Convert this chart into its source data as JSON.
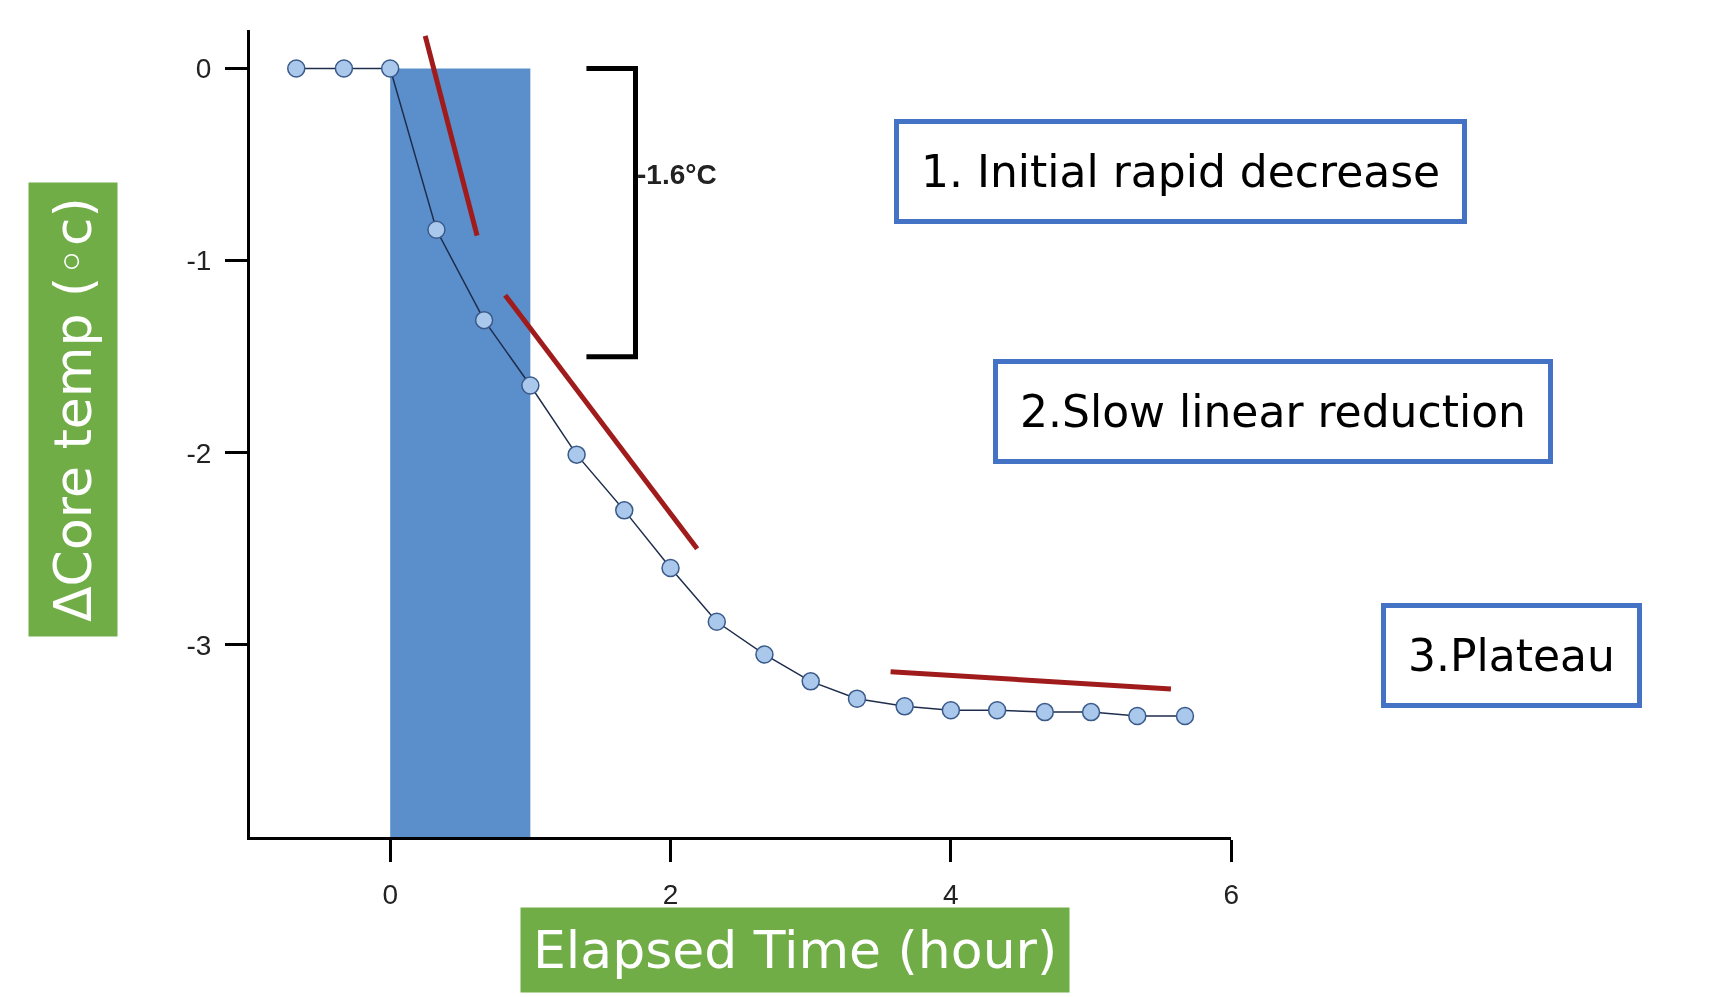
{
  "chart_data": {
    "type": "line",
    "xlabel": "Elapsed Time (hour)",
    "ylabel": "ΔCore temp (◦c)",
    "xlim": [
      -1,
      6
    ],
    "ylim": [
      -4,
      0.2
    ],
    "xticks": [
      0,
      2,
      4,
      6
    ],
    "yticks": [
      -3,
      -2,
      -1,
      0
    ],
    "series": [
      {
        "color": "#a9c8ec",
        "marker": "circle",
        "x": [
          -0.67,
          -0.33,
          0,
          0.33,
          0.67,
          1,
          1.33,
          1.67,
          2,
          2.33,
          2.67,
          3,
          3.33,
          3.67,
          4,
          4.33,
          4.67,
          5,
          5.33,
          5.67
        ],
        "values": [
          0,
          0,
          0,
          -0.84,
          -1.31,
          -1.65,
          -2.01,
          -2.3,
          -2.6,
          -2.88,
          -3.05,
          -3.19,
          -3.28,
          -3.32,
          -3.34,
          -3.34,
          -3.35,
          -3.35,
          -3.37,
          -3.37
        ]
      },
      {
        "color": "#a01c1c",
        "marker": "none",
        "x": [
          0.25,
          0.62
        ],
        "values": [
          0.17,
          -0.87
        ]
      },
      {
        "color": "#a01c1c",
        "marker": "none",
        "x": [
          0.82,
          2.19
        ],
        "values": [
          -1.18,
          -2.5
        ]
      },
      {
        "color": "#a01c1c",
        "marker": "none",
        "x": [
          3.57,
          5.57
        ],
        "values": [
          -3.14,
          -3.23
        ]
      },
      {
        "color": "#000000",
        "marker": "none",
        "x": [
          1.4,
          1.75,
          1.75,
          1.4
        ],
        "values": [
          0,
          0,
          -1.5,
          -1.5
        ]
      }
    ],
    "bands": [
      {
        "axis": "x",
        "from": 0,
        "to": 1,
        "color": "#5b8fcc"
      }
    ],
    "annotations": [
      "1. Initial rapid decrease",
      "2.Slow linear reduction",
      "3.Plateau",
      {
        "text": "-1.6°C",
        "x": 1.75,
        "y": -0.55
      }
    ],
    "grid": false
  }
}
